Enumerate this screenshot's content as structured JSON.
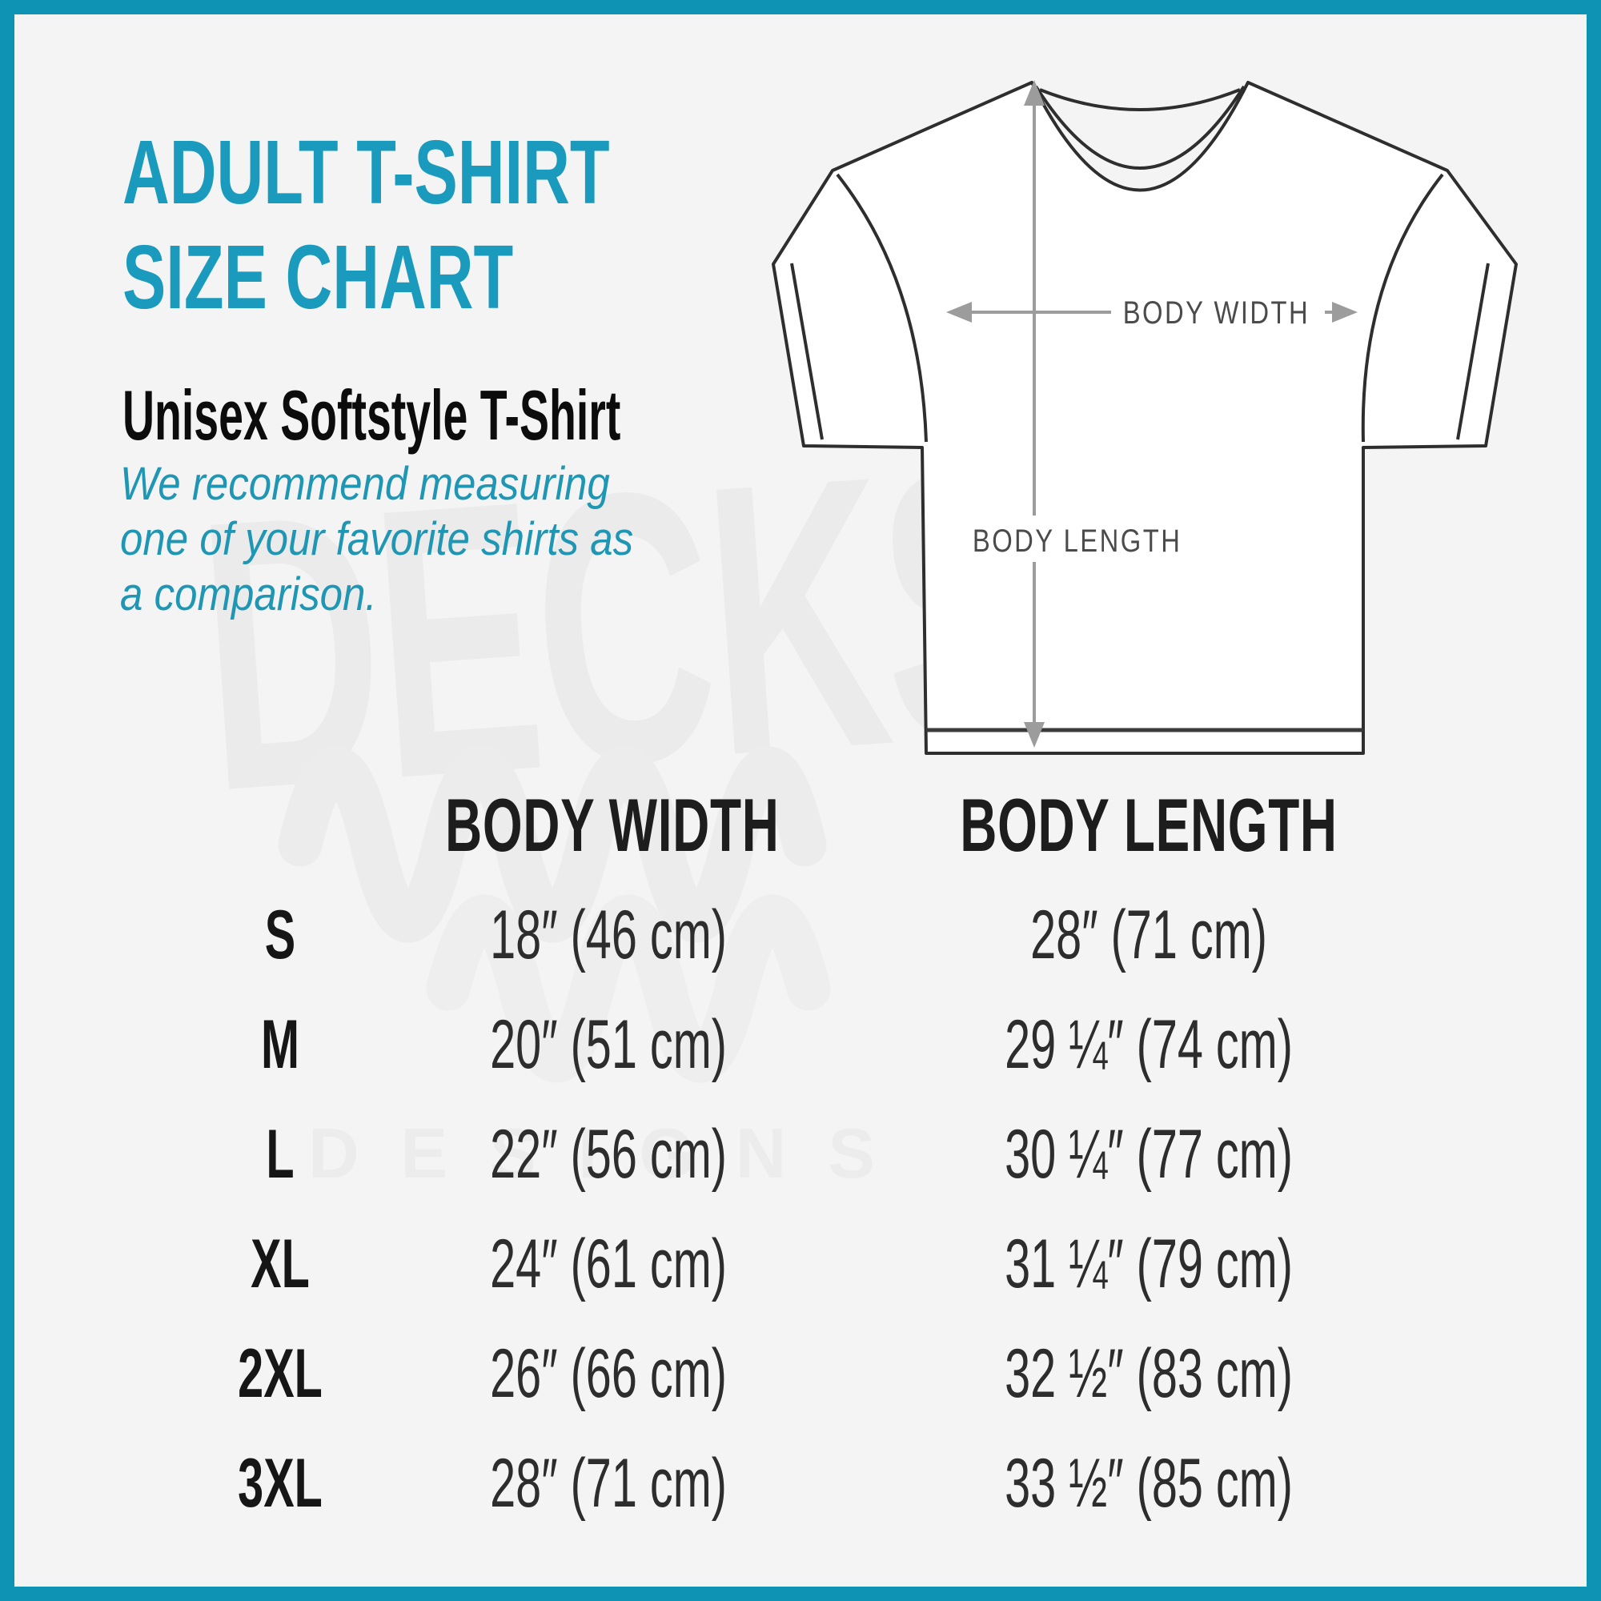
{
  "page": {
    "frame_color": "#0e93b5",
    "background_color": "#f4f4f5",
    "title_color": "#1a9bbd",
    "note_color": "#1f96b3"
  },
  "header": {
    "title_line1": "ADULT T-SHIRT",
    "title_line2": "SIZE CHART",
    "subtitle": "Unisex Softstyle T-Shirt",
    "note_lines": [
      "We recommend measuring",
      "one of your favorite shirts as",
      "a comparison."
    ]
  },
  "diagram": {
    "body_width_label": "BODY WIDTH",
    "body_length_label": "BODY LENGTH"
  },
  "watermark": {
    "word": "DECKSY",
    "sub": "DESIGNS"
  },
  "chart_data": {
    "type": "table",
    "title": "ADULT T-SHIRT SIZE CHART",
    "columns": [
      "",
      "BODY WIDTH",
      "BODY LENGTH"
    ],
    "rows": [
      [
        "S",
        "18″ (46 cm)",
        "28″ (71 cm)"
      ],
      [
        "M",
        "20″ (51 cm)",
        "29 ¼″ (74 cm)"
      ],
      [
        "L",
        "22″ (56 cm)",
        "30 ¼″ (77 cm)"
      ],
      [
        "XL",
        "24″ (61 cm)",
        "31 ¼″ (79 cm)"
      ],
      [
        "2XL",
        "26″ (66 cm)",
        "32 ½″ (83 cm)"
      ],
      [
        "3XL",
        "28″ (71 cm)",
        "33 ½″ (85 cm)"
      ]
    ]
  }
}
